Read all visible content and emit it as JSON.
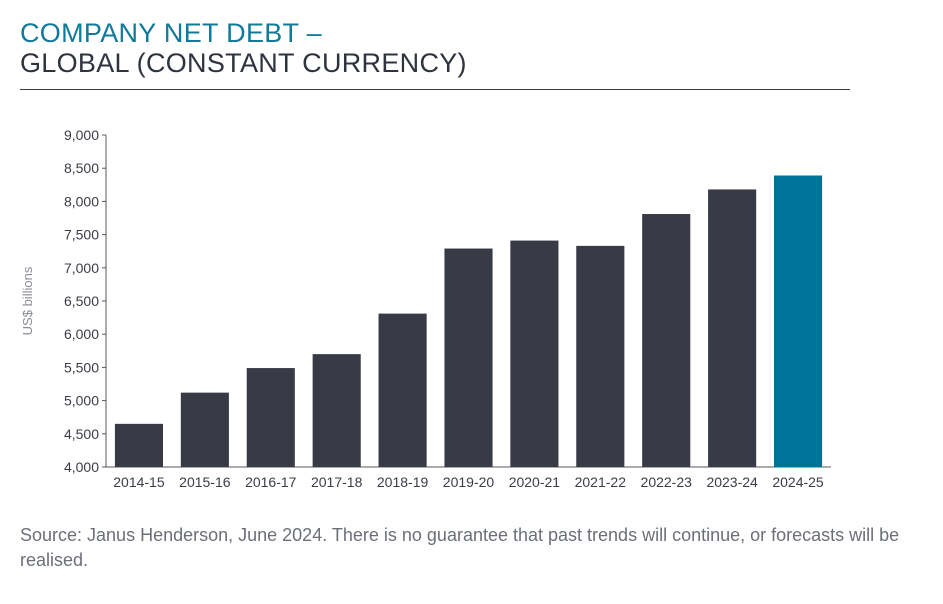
{
  "title": {
    "line1": "COMPANY NET DEBT –",
    "line2": "GLOBAL (CONSTANT CURRENCY)"
  },
  "source": "Source: Janus Henderson, June 2024. There is no guarantee that past trends will continue, or forecasts will be realised.",
  "colors": {
    "bar": "#383b45",
    "highlight": "#00739a",
    "title_accent": "#0f7a99"
  },
  "chart_data": {
    "type": "bar",
    "title": "",
    "xlabel": "",
    "ylabel": "US$ billions",
    "ylim": [
      4000,
      9000
    ],
    "yticks": [
      "4,000",
      "4,500",
      "5,000",
      "5,500",
      "6,000",
      "6,500",
      "7,000",
      "7,500",
      "8,000",
      "8,500",
      "9,000"
    ],
    "grid": false,
    "categories": [
      "2014-15",
      "2015-16",
      "2016-17",
      "2017-18",
      "2018-19",
      "2019-20",
      "2020-21",
      "2021-22",
      "2022-23",
      "2023-24",
      "2024-25"
    ],
    "values": [
      4650,
      5120,
      5490,
      5700,
      6310,
      7290,
      7410,
      7330,
      7810,
      8180,
      8390
    ],
    "highlighted_category": "2024-25"
  }
}
